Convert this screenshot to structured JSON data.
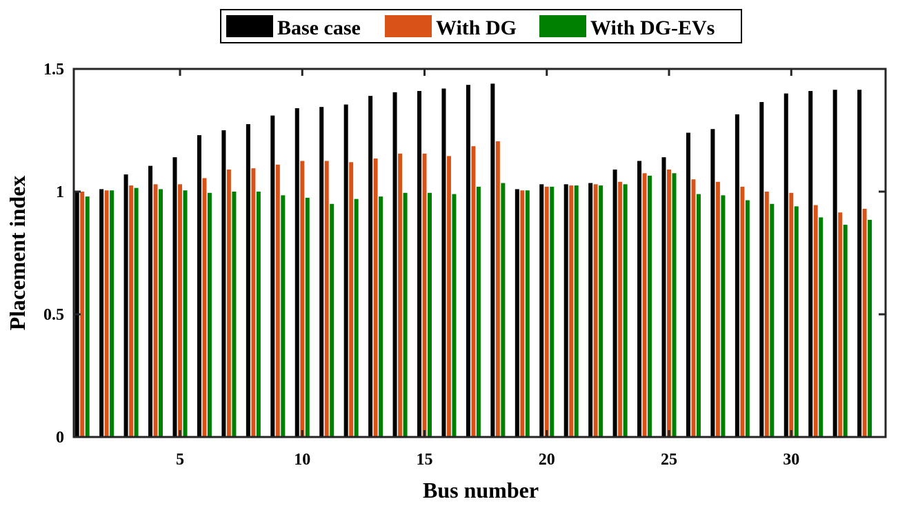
{
  "chart_data": {
    "type": "bar",
    "title": "",
    "xlabel": "Bus number",
    "ylabel": "Placement index",
    "ylim": [
      0,
      1.5
    ],
    "yticks": [
      0,
      0.5,
      1,
      1.5
    ],
    "ytick_labels": [
      "0",
      "0.5",
      "1",
      "1.5"
    ],
    "xticks": [
      5,
      10,
      15,
      20,
      25,
      30
    ],
    "xtick_labels": [
      "5",
      "10",
      "15",
      "20",
      "25",
      "30"
    ],
    "legend_position": "top-center",
    "categories": [
      1,
      2,
      3,
      4,
      5,
      6,
      7,
      8,
      9,
      10,
      11,
      12,
      13,
      14,
      15,
      16,
      17,
      18,
      19,
      20,
      21,
      22,
      23,
      24,
      25,
      26,
      27,
      28,
      29,
      30,
      31,
      32,
      33
    ],
    "series": [
      {
        "name": "Base case",
        "color": "#000000",
        "values": [
          1.0,
          1.01,
          1.07,
          1.105,
          1.14,
          1.23,
          1.25,
          1.275,
          1.31,
          1.34,
          1.345,
          1.355,
          1.39,
          1.405,
          1.41,
          1.42,
          1.435,
          1.44,
          1.01,
          1.03,
          1.03,
          1.035,
          1.09,
          1.125,
          1.14,
          1.24,
          1.255,
          1.315,
          1.365,
          1.4,
          1.41,
          1.415,
          1.415
        ]
      },
      {
        "name": "With DG",
        "color": "#d95319",
        "values": [
          1.0,
          1.005,
          1.025,
          1.03,
          1.03,
          1.055,
          1.09,
          1.095,
          1.11,
          1.125,
          1.125,
          1.12,
          1.135,
          1.155,
          1.155,
          1.145,
          1.185,
          1.205,
          1.005,
          1.02,
          1.025,
          1.03,
          1.04,
          1.075,
          1.09,
          1.05,
          1.04,
          1.02,
          1.0,
          0.995,
          0.945,
          0.915,
          0.93
        ]
      },
      {
        "name": "With DG-EVs",
        "color": "#008000",
        "values": [
          0.98,
          1.005,
          1.015,
          1.01,
          1.005,
          0.995,
          1.0,
          1.0,
          0.985,
          0.975,
          0.95,
          0.97,
          0.98,
          0.995,
          0.995,
          0.99,
          1.02,
          1.035,
          1.005,
          1.02,
          1.025,
          1.025,
          1.03,
          1.065,
          1.075,
          0.99,
          0.985,
          0.965,
          0.95,
          0.94,
          0.895,
          0.865,
          0.885
        ]
      }
    ]
  }
}
